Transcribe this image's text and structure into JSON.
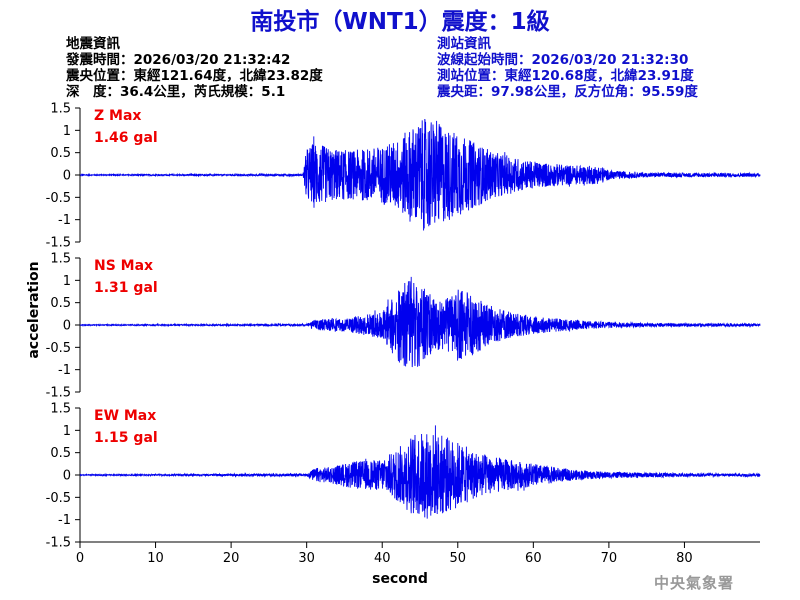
{
  "title": "南投市（WNT1）震度：1級",
  "earthquake_info": {
    "heading": "地震資訊",
    "time": "發震時間：2026/03/20 21:32:42",
    "location": "震央位置：東經121.64度，北緯23.82度",
    "depth_magnitude": "深　度：36.4公里，芮氏規模：5.1"
  },
  "station_info": {
    "heading": "測站資訊",
    "wave_start": "波線起始時間：2026/03/20 21:32:30",
    "location": "測站位置：東經120.68度，北緯23.91度",
    "distance": "震央距：97.98公里，反方位角：95.59度"
  },
  "agency": "中央氣象署",
  "colors": {
    "title": "#1010cc",
    "trace": "#0000ee",
    "max_label": "#ee0000"
  },
  "chart_data": {
    "type": "line",
    "xlabel": "second",
    "ylabel": "acceleration",
    "xlim": [
      0,
      90
    ],
    "xticks": [
      0,
      10,
      20,
      30,
      40,
      50,
      60,
      70,
      80
    ],
    "ylim": [
      -1.5,
      1.5
    ],
    "yticks": [
      -1.5,
      -1,
      -0.5,
      0,
      0.5,
      1,
      1.5
    ],
    "series": [
      {
        "name": "Z",
        "max_label": "Z Max",
        "max_value": "1.46 gal",
        "envelope": [
          [
            0,
            0.01
          ],
          [
            29.5,
            0.02
          ],
          [
            30,
            0.6
          ],
          [
            31,
            0.75
          ],
          [
            33,
            0.6
          ],
          [
            36,
            0.55
          ],
          [
            40,
            0.65
          ],
          [
            42,
            0.8
          ],
          [
            44,
            1.1
          ],
          [
            45,
            1.2
          ],
          [
            46,
            1.3
          ],
          [
            48,
            1.1
          ],
          [
            50,
            0.95
          ],
          [
            52,
            0.75
          ],
          [
            55,
            0.5
          ],
          [
            60,
            0.3
          ],
          [
            65,
            0.22
          ],
          [
            69,
            0.2
          ],
          [
            70,
            0.1
          ],
          [
            75,
            0.05
          ],
          [
            90,
            0.04
          ]
        ]
      },
      {
        "name": "NS",
        "max_label": "NS Max",
        "max_value": "1.31 gal",
        "envelope": [
          [
            0,
            0.01
          ],
          [
            30,
            0.02
          ],
          [
            31,
            0.12
          ],
          [
            35,
            0.15
          ],
          [
            40,
            0.3
          ],
          [
            42,
            0.8
          ],
          [
            43,
            1.0
          ],
          [
            44,
            1.1
          ],
          [
            45,
            0.9
          ],
          [
            47,
            0.6
          ],
          [
            48,
            0.55
          ],
          [
            50,
            0.8
          ],
          [
            52,
            0.7
          ],
          [
            54,
            0.45
          ],
          [
            57,
            0.3
          ],
          [
            60,
            0.2
          ],
          [
            65,
            0.12
          ],
          [
            70,
            0.07
          ],
          [
            75,
            0.04
          ],
          [
            90,
            0.03
          ]
        ]
      },
      {
        "name": "EW",
        "max_label": "EW Max",
        "max_value": "1.15 gal",
        "envelope": [
          [
            0,
            0.01
          ],
          [
            30,
            0.03
          ],
          [
            31,
            0.15
          ],
          [
            33,
            0.18
          ],
          [
            36,
            0.3
          ],
          [
            40,
            0.35
          ],
          [
            42,
            0.6
          ],
          [
            44,
            0.9
          ],
          [
            46,
            1.0
          ],
          [
            48,
            0.9
          ],
          [
            50,
            0.75
          ],
          [
            52,
            0.55
          ],
          [
            55,
            0.4
          ],
          [
            60,
            0.25
          ],
          [
            65,
            0.12
          ],
          [
            70,
            0.07
          ],
          [
            80,
            0.04
          ],
          [
            90,
            0.03
          ]
        ]
      }
    ]
  }
}
